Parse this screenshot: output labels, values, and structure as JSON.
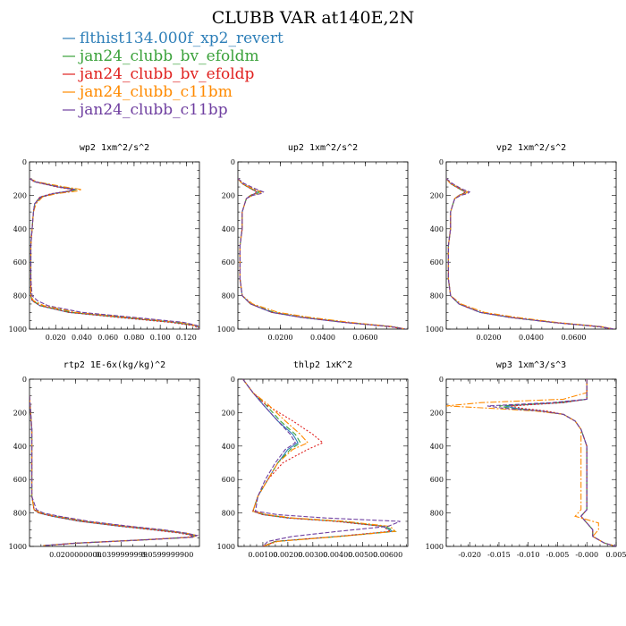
{
  "title": "CLUBB VAR at140E,2N",
  "legend": [
    {
      "label": "flthist134.000f_xp2_revert",
      "color": "#2e7fb8",
      "dash": ""
    },
    {
      "label": "jan24_clubb_bv_efoldm",
      "color": "#3aa13a",
      "dash": "6,3"
    },
    {
      "label": "jan24_clubb_bv_efoldp",
      "color": "#e0211f",
      "dash": "2,2"
    },
    {
      "label": "jan24_clubb_c11bm",
      "color": "#ff8a00",
      "dash": "7,2,2,2"
    },
    {
      "label": "jan24_clubb_c11bp",
      "color": "#6f3fa0",
      "dash": "5,2"
    }
  ],
  "chart_data": [
    {
      "type": "line",
      "title": "wp2  1xm^2/s^2",
      "ylim": [
        1000,
        0
      ],
      "xlim": [
        0,
        0.13
      ],
      "yticks": [
        "0",
        "200",
        "400",
        "600",
        "800",
        "1000"
      ],
      "xticks": [
        "0.020",
        "0.040",
        "0.060",
        "0.080",
        "0.100",
        "0.120"
      ],
      "xtick_values": [
        0.02,
        0.04,
        0.06,
        0.08,
        0.1,
        0.12
      ],
      "y": [
        100,
        120,
        150,
        165,
        175,
        190,
        210,
        250,
        300,
        400,
        500,
        600,
        700,
        800,
        830,
        860,
        900,
        930,
        960,
        980,
        1000
      ],
      "series": [
        {
          "values": [
            0.0,
            0.004,
            0.022,
            0.034,
            0.03,
            0.018,
            0.008,
            0.004,
            0.003,
            0.002,
            0.001,
            0.001,
            0.001,
            0.001,
            0.002,
            0.008,
            0.03,
            0.07,
            0.11,
            0.128,
            0.13
          ]
        },
        {
          "values": [
            0.0,
            0.005,
            0.024,
            0.036,
            0.032,
            0.019,
            0.009,
            0.004,
            0.003,
            0.002,
            0.001,
            0.001,
            0.001,
            0.001,
            0.002,
            0.009,
            0.032,
            0.072,
            0.112,
            0.128,
            0.13
          ]
        },
        {
          "values": [
            0.0,
            0.004,
            0.021,
            0.033,
            0.03,
            0.017,
            0.008,
            0.004,
            0.003,
            0.002,
            0.001,
            0.001,
            0.001,
            0.001,
            0.002,
            0.008,
            0.03,
            0.068,
            0.108,
            0.126,
            0.13
          ]
        },
        {
          "values": [
            0.0,
            0.006,
            0.027,
            0.04,
            0.036,
            0.021,
            0.01,
            0.005,
            0.003,
            0.002,
            0.001,
            0.001,
            0.001,
            0.001,
            0.003,
            0.011,
            0.036,
            0.076,
            0.115,
            0.129,
            0.13
          ]
        },
        {
          "values": [
            0.0,
            0.005,
            0.023,
            0.035,
            0.031,
            0.018,
            0.009,
            0.004,
            0.003,
            0.002,
            0.001,
            0.001,
            0.001,
            0.002,
            0.006,
            0.014,
            0.04,
            0.08,
            0.118,
            0.129,
            0.13
          ]
        }
      ]
    },
    {
      "type": "line",
      "title": "up2  1xm^2/s^2",
      "ylim": [
        1000,
        0
      ],
      "xlim": [
        0,
        0.08
      ],
      "yticks": [
        "0",
        "200",
        "400",
        "600",
        "800",
        "1000"
      ],
      "xticks": [
        "0.0200",
        "0.0400",
        "0.0600"
      ],
      "xtick_values": [
        0.02,
        0.04,
        0.06
      ],
      "y": [
        100,
        130,
        160,
        180,
        190,
        200,
        220,
        260,
        300,
        400,
        500,
        600,
        700,
        800,
        850,
        900,
        930,
        960,
        985,
        1000
      ],
      "series": [
        {
          "values": [
            0.0,
            0.002,
            0.006,
            0.009,
            0.008,
            0.006,
            0.004,
            0.003,
            0.002,
            0.002,
            0.001,
            0.001,
            0.001,
            0.002,
            0.006,
            0.016,
            0.03,
            0.05,
            0.072,
            0.079
          ]
        },
        {
          "values": [
            0.0,
            0.002,
            0.006,
            0.01,
            0.009,
            0.006,
            0.004,
            0.003,
            0.002,
            0.002,
            0.001,
            0.001,
            0.001,
            0.002,
            0.006,
            0.017,
            0.031,
            0.051,
            0.072,
            0.079
          ]
        },
        {
          "values": [
            0.0,
            0.002,
            0.006,
            0.009,
            0.008,
            0.006,
            0.004,
            0.003,
            0.002,
            0.002,
            0.001,
            0.001,
            0.001,
            0.002,
            0.006,
            0.016,
            0.03,
            0.05,
            0.071,
            0.079
          ]
        },
        {
          "values": [
            0.0,
            0.002,
            0.007,
            0.011,
            0.01,
            0.007,
            0.004,
            0.003,
            0.002,
            0.002,
            0.001,
            0.001,
            0.001,
            0.002,
            0.007,
            0.019,
            0.034,
            0.053,
            0.073,
            0.079
          ]
        },
        {
          "values": [
            0.0,
            0.003,
            0.008,
            0.012,
            0.011,
            0.007,
            0.004,
            0.003,
            0.002,
            0.002,
            0.001,
            0.001,
            0.001,
            0.002,
            0.006,
            0.016,
            0.03,
            0.05,
            0.072,
            0.079
          ]
        }
      ]
    },
    {
      "type": "line",
      "title": "vp2  1xm^2/s^2",
      "ylim": [
        1000,
        0
      ],
      "xlim": [
        0,
        0.08
      ],
      "yticks": [
        "0",
        "200",
        "400",
        "600",
        "800",
        "1000"
      ],
      "xticks": [
        "0.0200",
        "0.0400",
        "0.0600"
      ],
      "xtick_values": [
        0.02,
        0.04,
        0.06
      ],
      "y": [
        100,
        130,
        160,
        180,
        190,
        200,
        220,
        260,
        300,
        400,
        500,
        600,
        700,
        800,
        850,
        900,
        930,
        960,
        985,
        1000
      ],
      "series": [
        {
          "values": [
            0.0,
            0.002,
            0.006,
            0.009,
            0.008,
            0.006,
            0.004,
            0.003,
            0.002,
            0.002,
            0.001,
            0.001,
            0.001,
            0.002,
            0.006,
            0.016,
            0.03,
            0.05,
            0.072,
            0.079
          ]
        },
        {
          "values": [
            0.0,
            0.002,
            0.006,
            0.009,
            0.008,
            0.006,
            0.004,
            0.003,
            0.002,
            0.002,
            0.001,
            0.001,
            0.001,
            0.002,
            0.006,
            0.016,
            0.03,
            0.05,
            0.072,
            0.079
          ]
        },
        {
          "values": [
            0.0,
            0.002,
            0.006,
            0.009,
            0.008,
            0.006,
            0.004,
            0.003,
            0.002,
            0.002,
            0.001,
            0.001,
            0.001,
            0.002,
            0.006,
            0.016,
            0.03,
            0.05,
            0.071,
            0.079
          ]
        },
        {
          "values": [
            0.0,
            0.002,
            0.007,
            0.01,
            0.009,
            0.006,
            0.004,
            0.003,
            0.002,
            0.002,
            0.001,
            0.001,
            0.001,
            0.002,
            0.007,
            0.018,
            0.033,
            0.052,
            0.073,
            0.079
          ]
        },
        {
          "values": [
            0.0,
            0.003,
            0.007,
            0.011,
            0.01,
            0.007,
            0.004,
            0.003,
            0.002,
            0.002,
            0.001,
            0.001,
            0.001,
            0.002,
            0.006,
            0.016,
            0.03,
            0.05,
            0.072,
            0.079
          ]
        }
      ]
    },
    {
      "type": "line",
      "title": "rtp2  1E-6x(kg/kg)^2",
      "ylim": [
        1000,
        0
      ],
      "xlim": [
        0,
        0.074
      ],
      "yticks": [
        "0",
        "200",
        "400",
        "600",
        "800",
        "1000"
      ],
      "xticks": [
        "0.0200000000",
        "0.0399999999",
        "0.0599999900"
      ],
      "xtick_values": [
        0.02,
        0.04,
        0.06
      ],
      "y": [
        100,
        300,
        500,
        700,
        780,
        800,
        820,
        850,
        880,
        900,
        920,
        935,
        945,
        960,
        980,
        995
      ],
      "series": [
        {
          "values": [
            0.0,
            0.001,
            0.001,
            0.001,
            0.002,
            0.004,
            0.01,
            0.022,
            0.04,
            0.054,
            0.066,
            0.072,
            0.07,
            0.05,
            0.02,
            0.006
          ]
        },
        {
          "values": [
            0.0,
            0.001,
            0.001,
            0.001,
            0.002,
            0.005,
            0.011,
            0.024,
            0.042,
            0.056,
            0.067,
            0.073,
            0.071,
            0.052,
            0.021,
            0.006
          ]
        },
        {
          "values": [
            0.0,
            0.001,
            0.001,
            0.001,
            0.002,
            0.004,
            0.01,
            0.022,
            0.04,
            0.053,
            0.065,
            0.071,
            0.069,
            0.05,
            0.02,
            0.006
          ]
        },
        {
          "values": [
            0.0,
            0.001,
            0.001,
            0.001,
            0.002,
            0.005,
            0.012,
            0.025,
            0.043,
            0.057,
            0.068,
            0.073,
            0.071,
            0.052,
            0.021,
            0.006
          ]
        },
        {
          "values": [
            0.0,
            0.001,
            0.001,
            0.001,
            0.003,
            0.006,
            0.013,
            0.026,
            0.044,
            0.058,
            0.068,
            0.073,
            0.071,
            0.052,
            0.021,
            0.006
          ]
        }
      ]
    },
    {
      "type": "line",
      "title": "thlp2  1xK^2",
      "ylim": [
        1000,
        0
      ],
      "xlim": [
        0,
        0.0068
      ],
      "yticks": [
        "0",
        "200",
        "400",
        "600",
        "800",
        "1000"
      ],
      "xticks": [
        "0.00100",
        "0.00200",
        "0.00300",
        "0.00400",
        "0.00500",
        "0.00600"
      ],
      "xtick_values": [
        0.001,
        0.002,
        0.003,
        0.004,
        0.005,
        0.006
      ],
      "y": [
        0,
        40,
        80,
        150,
        250,
        330,
        380,
        420,
        500,
        600,
        700,
        790,
        810,
        830,
        850,
        880,
        910,
        940,
        970,
        1000
      ],
      "series": [
        {
          "values": [
            0.0002,
            0.0004,
            0.0006,
            0.001,
            0.0016,
            0.0022,
            0.0024,
            0.002,
            0.0016,
            0.0012,
            0.0008,
            0.0006,
            0.001,
            0.002,
            0.004,
            0.0058,
            0.0062,
            0.004,
            0.0015,
            0.001
          ]
        },
        {
          "values": [
            0.0002,
            0.0004,
            0.0006,
            0.0011,
            0.0017,
            0.0023,
            0.0025,
            0.0021,
            0.0016,
            0.0012,
            0.0008,
            0.0006,
            0.0011,
            0.0021,
            0.0041,
            0.0059,
            0.0063,
            0.0041,
            0.0015,
            0.001
          ]
        },
        {
          "values": [
            0.0002,
            0.0004,
            0.0006,
            0.0011,
            0.0022,
            0.003,
            0.0034,
            0.0028,
            0.0018,
            0.0012,
            0.0008,
            0.0006,
            0.001,
            0.002,
            0.0039,
            0.0058,
            0.0061,
            0.004,
            0.0015,
            0.001
          ]
        },
        {
          "values": [
            0.0002,
            0.0004,
            0.0006,
            0.0012,
            0.0019,
            0.0025,
            0.0028,
            0.0022,
            0.0016,
            0.0012,
            0.0008,
            0.0006,
            0.0012,
            0.0022,
            0.0043,
            0.0061,
            0.0063,
            0.0041,
            0.0016,
            0.001
          ]
        },
        {
          "values": [
            0.0002,
            0.0004,
            0.0006,
            0.001,
            0.0016,
            0.0021,
            0.0023,
            0.0019,
            0.0015,
            0.0011,
            0.0008,
            0.0007,
            0.0016,
            0.0035,
            0.0065,
            0.006,
            0.004,
            0.0022,
            0.0012,
            0.001
          ]
        }
      ]
    },
    {
      "type": "line",
      "title": "wp3  1xm^3/s^3",
      "ylim": [
        1000,
        0
      ],
      "xlim": [
        -0.024,
        0.005
      ],
      "yticks": [
        "0",
        "200",
        "400",
        "600",
        "800",
        "1000"
      ],
      "xticks": [
        "-0.020",
        "-0.015",
        "-0.010",
        "-0.005",
        "-0.000",
        "0.005"
      ],
      "xtick_values": [
        -0.02,
        -0.015,
        -0.01,
        -0.005,
        0.0,
        0.005
      ],
      "y": [
        0,
        80,
        120,
        140,
        160,
        175,
        190,
        210,
        250,
        300,
        400,
        500,
        600,
        700,
        780,
        820,
        860,
        900,
        940,
        980,
        1000
      ],
      "series": [
        {
          "values": [
            0.0,
            0.0,
            0.0,
            -0.004,
            -0.014,
            -0.012,
            -0.008,
            -0.004,
            -0.002,
            -0.001,
            0.0,
            0.0,
            0.0,
            0.0,
            0.0,
            -0.001,
            0.0,
            0.001,
            0.001,
            0.003,
            0.005
          ]
        },
        {
          "values": [
            0.0,
            0.0,
            0.0,
            -0.005,
            -0.015,
            -0.013,
            -0.008,
            -0.004,
            -0.002,
            -0.001,
            0.0,
            0.0,
            0.0,
            0.0,
            0.0,
            -0.001,
            0.0,
            0.001,
            0.001,
            0.003,
            0.005
          ]
        },
        {
          "values": [
            0.0,
            0.0,
            0.0,
            -0.004,
            -0.013,
            -0.011,
            -0.007,
            -0.004,
            -0.002,
            -0.001,
            0.0,
            0.0,
            0.0,
            0.0,
            0.0,
            -0.001,
            0.0,
            0.001,
            0.001,
            0.003,
            0.005
          ]
        },
        {
          "values": [
            0.0,
            0.0,
            -0.004,
            -0.018,
            -0.024,
            -0.016,
            -0.009,
            -0.004,
            -0.002,
            -0.001,
            -0.001,
            -0.001,
            -0.001,
            -0.001,
            -0.001,
            -0.002,
            0.002,
            0.002,
            0.001,
            0.003,
            0.005
          ]
        },
        {
          "values": [
            0.0,
            0.0,
            0.0,
            -0.006,
            -0.017,
            -0.014,
            -0.008,
            -0.004,
            -0.002,
            -0.001,
            0.0,
            0.0,
            0.0,
            0.0,
            0.0,
            -0.001,
            0.0,
            0.001,
            0.001,
            0.003,
            0.005
          ]
        }
      ]
    }
  ]
}
